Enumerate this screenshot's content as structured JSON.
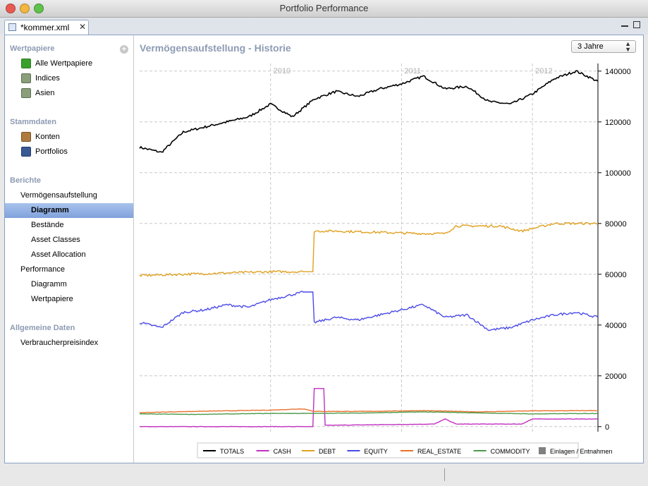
{
  "app": {
    "title": "Portfolio Performance"
  },
  "editor_tab": {
    "label": "*kommer.xml",
    "close_symbol": "✕"
  },
  "sidebar": {
    "sections": [
      {
        "title": "Wertpapiere",
        "items": [
          {
            "label": "Alle Wertpapiere",
            "icon": "chart-icon"
          },
          {
            "label": "Indices",
            "icon": "chart-icon"
          },
          {
            "label": "Asien",
            "icon": "chart-icon"
          }
        ]
      },
      {
        "title": "Stammdaten",
        "items": [
          {
            "label": "Konten",
            "icon": "book-icon"
          },
          {
            "label": "Portfolios",
            "icon": "folder-icon"
          }
        ]
      },
      {
        "title": "Berichte",
        "items": [
          {
            "label": "Vermögensaufstellung"
          },
          {
            "label": "Diagramm",
            "selected": true
          },
          {
            "label": "Bestände"
          },
          {
            "label": "Asset Classes"
          },
          {
            "label": "Asset Allocation"
          },
          {
            "label": "Performance"
          },
          {
            "label": "Diagramm"
          },
          {
            "label": "Wertpapiere"
          }
        ]
      },
      {
        "title": "Allgemeine Daten",
        "items": [
          {
            "label": "Verbraucherpreisindex"
          }
        ]
      }
    ]
  },
  "main": {
    "heading": "Vermögensaufstellung - Historie",
    "period_select": {
      "value": "3 Jahre"
    }
  },
  "chart_data": {
    "type": "line",
    "title": "",
    "x_ticks": [
      "2010",
      "2011",
      "2012"
    ],
    "y_ticks": [
      0,
      20000,
      40000,
      60000,
      80000,
      100000,
      120000,
      140000
    ],
    "ylim": [
      -2000,
      143000
    ],
    "xlim": [
      "2009-01",
      "2012-07"
    ],
    "grid": true,
    "legend_position": "bottom",
    "series": [
      {
        "name": "TOTALS",
        "color": "#000000",
        "x": [
          "2009-01",
          "2009-03",
          "2009-05",
          "2009-07",
          "2009-09",
          "2009-11",
          "2010-01",
          "2010-03",
          "2010-05",
          "2010-07",
          "2010-09",
          "2010-11",
          "2011-01",
          "2011-03",
          "2011-05",
          "2011-07",
          "2011-09",
          "2011-11",
          "2012-01",
          "2012-03",
          "2012-05",
          "2012-07"
        ],
        "y": [
          110000,
          108000,
          116000,
          118000,
          120000,
          122000,
          127000,
          122000,
          129000,
          132000,
          130000,
          133000,
          135000,
          138000,
          133000,
          134000,
          128000,
          127000,
          131000,
          137000,
          140000,
          136000
        ]
      },
      {
        "name": "CASH",
        "color": "#c02fc0",
        "x": [
          "2009-01",
          "2010-04",
          "2010-05",
          "2010-06",
          "2011-04",
          "2011-05",
          "2011-06",
          "2011-12",
          "2012-01",
          "2012-07"
        ],
        "y": [
          0,
          0,
          15000,
          500,
          1000,
          3000,
          1000,
          1000,
          3000,
          3000
        ]
      },
      {
        "name": "DEBT",
        "color": "#e0a020",
        "x": [
          "2009-01",
          "2009-05",
          "2009-09",
          "2010-01",
          "2010-04",
          "2010-05",
          "2010-07",
          "2010-11",
          "2011-03",
          "2011-05",
          "2011-06",
          "2011-10",
          "2011-12",
          "2012-03",
          "2012-07"
        ],
        "y": [
          59500,
          60000,
          60500,
          61000,
          61000,
          77000,
          77000,
          76500,
          76000,
          76000,
          79000,
          79000,
          77000,
          80000,
          80000
        ]
      },
      {
        "name": "EQUITY",
        "color": "#4a4ae8",
        "x": [
          "2009-01",
          "2009-03",
          "2009-05",
          "2009-07",
          "2009-09",
          "2009-11",
          "2010-01",
          "2010-04",
          "2010-05",
          "2010-07",
          "2010-09",
          "2010-11",
          "2011-01",
          "2011-03",
          "2011-05",
          "2011-07",
          "2011-09",
          "2011-11",
          "2012-01",
          "2012-03",
          "2012-05",
          "2012-07"
        ],
        "y": [
          41000,
          39000,
          45000,
          46000,
          48000,
          47000,
          50000,
          53000,
          41000,
          43000,
          42000,
          44000,
          46000,
          48000,
          43000,
          44000,
          38000,
          39000,
          42000,
          44000,
          45000,
          43000
        ]
      },
      {
        "name": "REAL_ESTATE",
        "color": "#e8702a",
        "x": [
          "2009-01",
          "2009-06",
          "2010-01",
          "2010-04",
          "2010-05",
          "2010-10",
          "2011-03",
          "2011-08",
          "2012-01",
          "2012-07"
        ],
        "y": [
          5500,
          6000,
          6500,
          7000,
          6000,
          6000,
          6300,
          5800,
          6200,
          6300
        ]
      },
      {
        "name": "COMMODITY",
        "color": "#4a9a4a",
        "x": [
          "2009-01",
          "2009-06",
          "2010-01",
          "2010-05",
          "2010-10",
          "2011-03",
          "2011-08",
          "2012-01",
          "2012-07"
        ],
        "y": [
          5000,
          4800,
          5200,
          5200,
          5400,
          5800,
          5400,
          5000,
          5200
        ]
      }
    ],
    "extra_legend": {
      "name": "Einlagen / Entnahmen",
      "color": "#808080"
    }
  }
}
